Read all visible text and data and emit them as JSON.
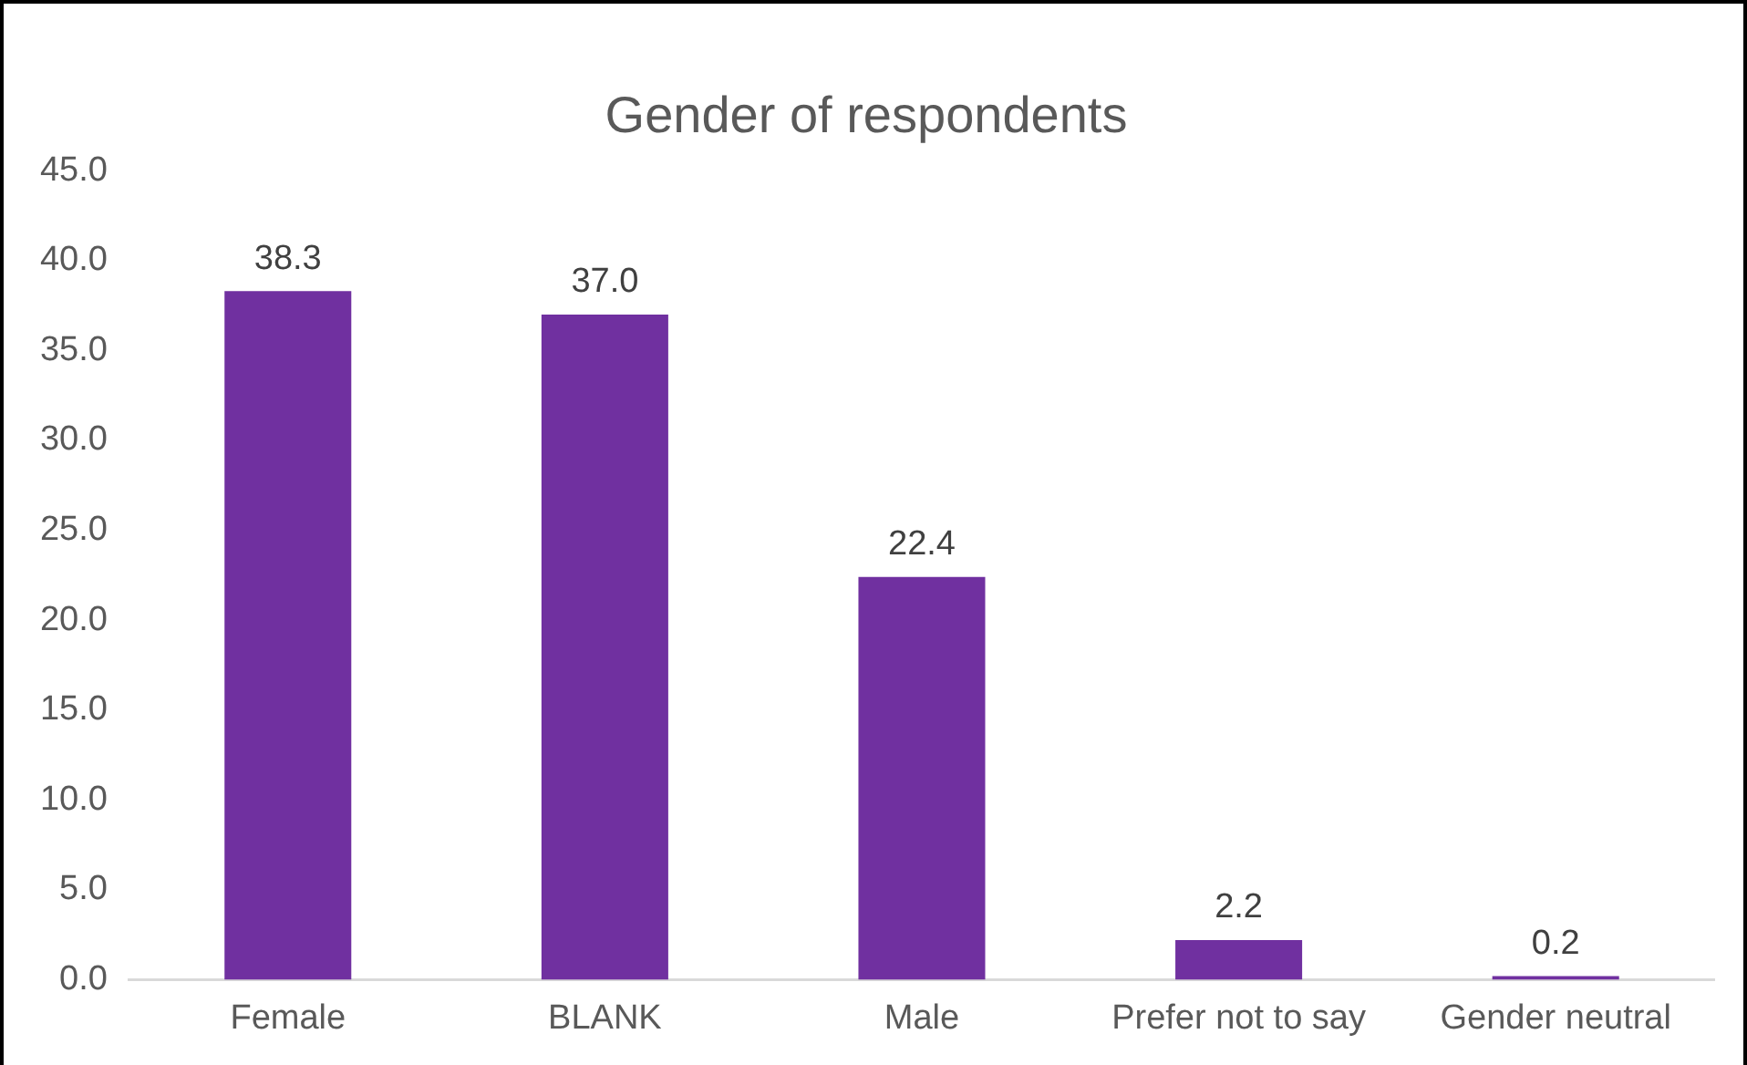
{
  "chart_data": {
    "type": "bar",
    "title": "Gender of respondents",
    "categories": [
      "Female",
      "BLANK",
      "Male",
      "Prefer not to say",
      "Gender neutral"
    ],
    "values": [
      38.3,
      37.0,
      22.4,
      2.2,
      0.2
    ],
    "value_labels": [
      "38.3",
      "37.0",
      "22.4",
      "2.2",
      "0.2"
    ],
    "color": "#7030a0",
    "ylim": [
      0,
      45
    ],
    "yticks": [
      {
        "value": 0,
        "label": "0.0"
      },
      {
        "value": 5,
        "label": "5.0"
      },
      {
        "value": 10,
        "label": "10.0"
      },
      {
        "value": 15,
        "label": "15.0"
      },
      {
        "value": 20,
        "label": "20.0"
      },
      {
        "value": 25,
        "label": "25.0"
      },
      {
        "value": 30,
        "label": "30.0"
      },
      {
        "value": 35,
        "label": "35.0"
      },
      {
        "value": 40,
        "label": "40.0"
      },
      {
        "value": 45,
        "label": "45.0"
      }
    ],
    "grid": false,
    "legend": false
  }
}
